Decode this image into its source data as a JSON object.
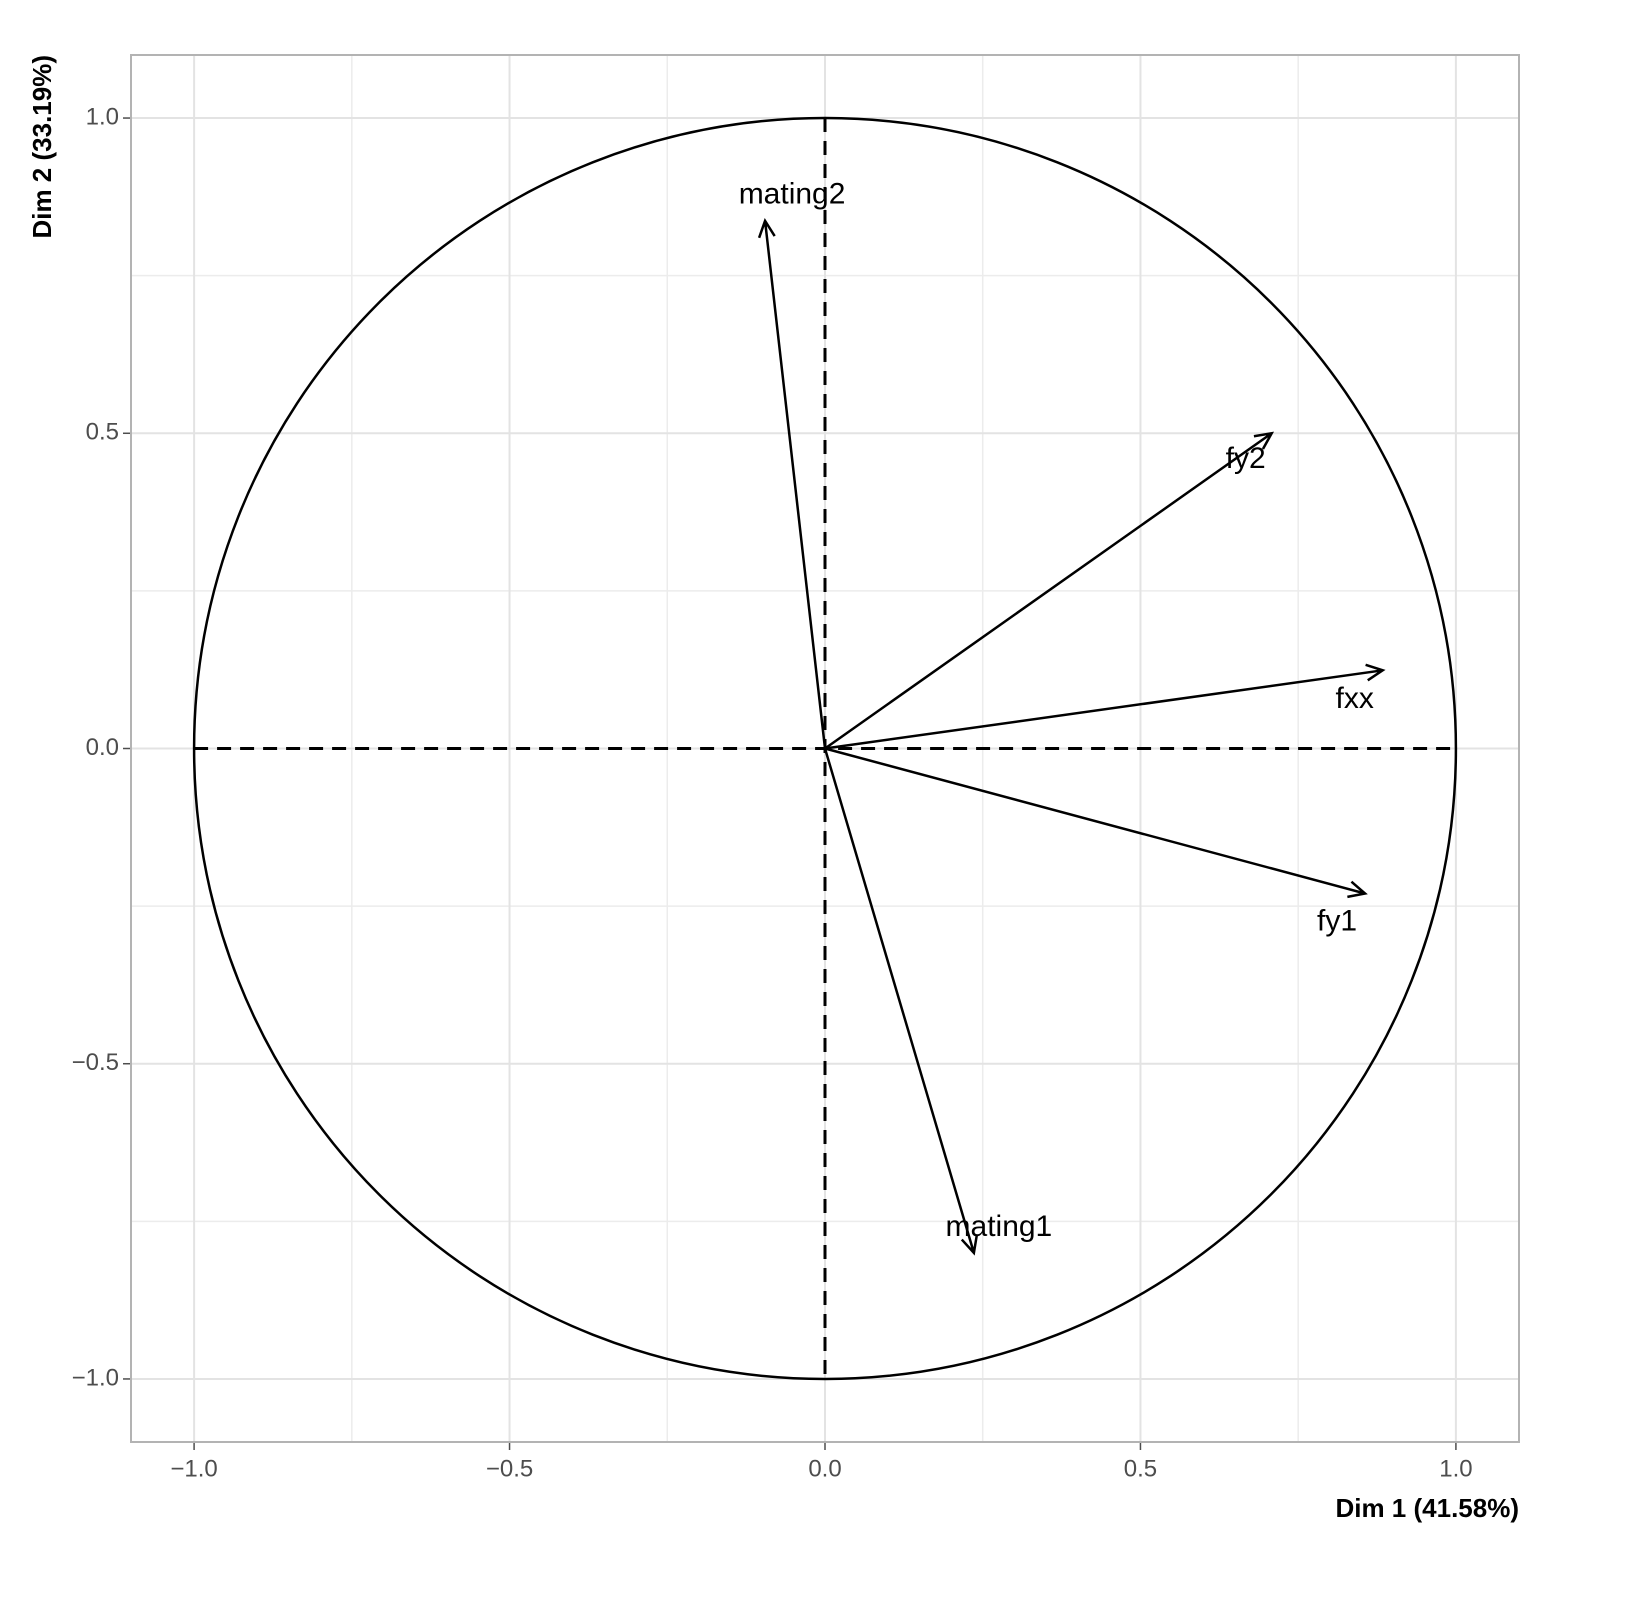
{
  "chart_data": {
    "type": "arrows",
    "x_label": "Dim 1 (41.58%)",
    "y_label": "Dim 2 (33.19%)",
    "xlim": [
      -1.1,
      1.1
    ],
    "ylim": [
      -1.1,
      1.1
    ],
    "xticks": [
      {
        "value": -1,
        "label": "−1.0"
      },
      {
        "value": -0.5,
        "label": "−0.5"
      },
      {
        "value": 0,
        "label": "0.0"
      },
      {
        "value": 0.5,
        "label": "0.5"
      },
      {
        "value": 1,
        "label": "1.0"
      }
    ],
    "yticks": [
      {
        "value": -1,
        "label": "−1.0"
      },
      {
        "value": -0.5,
        "label": "−0.5"
      },
      {
        "value": 0,
        "label": "0.0"
      },
      {
        "value": 0.5,
        "label": "0.5"
      },
      {
        "value": 1,
        "label": "1.0"
      }
    ],
    "x_minor_grid": [
      -0.75,
      -0.25,
      0.25,
      0.75
    ],
    "y_minor_grid": [
      -0.75,
      -0.25,
      0.25,
      0.75
    ],
    "grid": true,
    "circle_radius": 1,
    "reference_lines": {
      "x": 0,
      "y": 0
    },
    "color": "#000000",
    "series": [
      {
        "name": "mating2",
        "x": -0.095,
        "y": 0.837
      },
      {
        "name": "fy2",
        "x": 0.708,
        "y": 0.5
      },
      {
        "name": "fxx",
        "x": 0.884,
        "y": 0.124
      },
      {
        "name": "fy1",
        "x": 0.856,
        "y": -0.23
      },
      {
        "name": "mating1",
        "x": 0.236,
        "y": -0.8
      }
    ]
  }
}
